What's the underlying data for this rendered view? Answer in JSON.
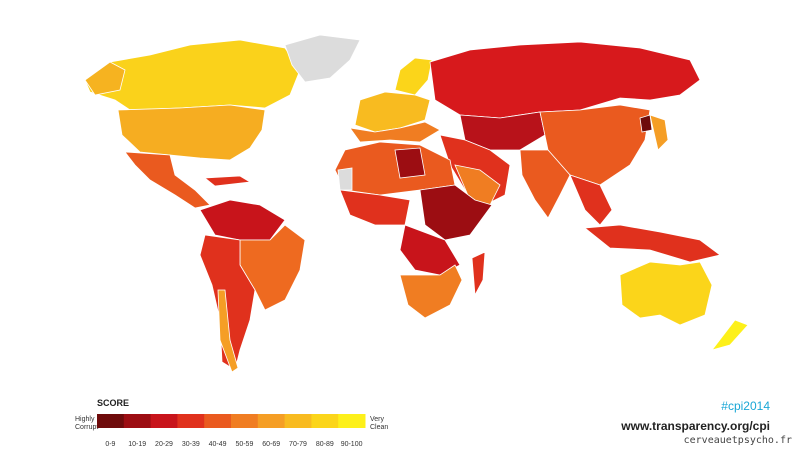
{
  "legend": {
    "title": "SCORE",
    "low_label": "Highly Corrupt",
    "high_label": "Very Clean",
    "bins": [
      {
        "label": "0-9",
        "color": "#6e0b0b"
      },
      {
        "label": "10-19",
        "color": "#9c0d12"
      },
      {
        "label": "20-29",
        "color": "#c8141b"
      },
      {
        "label": "30-39",
        "color": "#e0311d"
      },
      {
        "label": "40-49",
        "color": "#ea5a1f"
      },
      {
        "label": "50-59",
        "color": "#f07d22"
      },
      {
        "label": "60-69",
        "color": "#f59e25"
      },
      {
        "label": "70-79",
        "color": "#f8bb20"
      },
      {
        "label": "80-89",
        "color": "#fbd51a"
      },
      {
        "label": "90-100",
        "color": "#fdf01a"
      }
    ]
  },
  "hashtag": "#cpi2014",
  "url": "www.transparency.org/cpi",
  "watermark": "cerveauetpsycho.fr"
}
